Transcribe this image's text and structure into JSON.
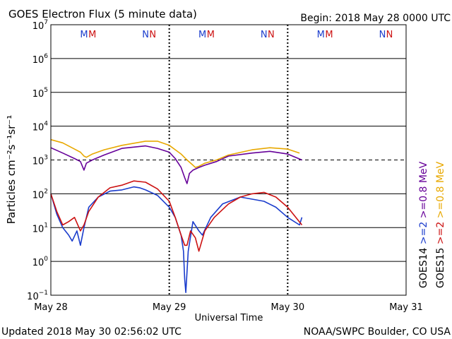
{
  "chart_data": {
    "type": "line",
    "title": "GOES Electron Flux (5 minute data)",
    "begin_label": "Begin: 2018 May 28 0000 UTC",
    "xlabel": "Universal Time",
    "ylabel": "Particles cm⁻²s⁻¹sr⁻¹",
    "x_ticks": [
      "May 28",
      "May 29",
      "May 30",
      "May 31"
    ],
    "x_range_days": [
      0,
      3
    ],
    "y_scale": "log",
    "ylim": [
      0.1,
      10000000
    ],
    "y_ticks": [
      {
        "base": "10",
        "exp": "7"
      },
      {
        "base": "10",
        "exp": "6"
      },
      {
        "base": "10",
        "exp": "5"
      },
      {
        "base": "10",
        "exp": "4"
      },
      {
        "base": "10",
        "exp": "3"
      },
      {
        "base": "10",
        "exp": "2"
      },
      {
        "base": "10",
        "exp": "1"
      },
      {
        "base": "10",
        "exp": "0"
      },
      {
        "base": "10",
        "exp": "−1"
      }
    ],
    "threshold_line_value": 1000,
    "mn_markers": [
      {
        "day": 0.28,
        "text": "M",
        "color": "#1a3ccc"
      },
      {
        "day": 0.35,
        "text": "M",
        "color": "#cc1111"
      },
      {
        "day": 0.8,
        "text": "N",
        "color": "#1a3ccc"
      },
      {
        "day": 0.86,
        "text": "N",
        "color": "#cc1111"
      },
      {
        "day": 1.28,
        "text": "M",
        "color": "#1a3ccc"
      },
      {
        "day": 1.35,
        "text": "M",
        "color": "#cc1111"
      },
      {
        "day": 1.8,
        "text": "N",
        "color": "#1a3ccc"
      },
      {
        "day": 1.86,
        "text": "N",
        "color": "#cc1111"
      },
      {
        "day": 2.28,
        "text": "M",
        "color": "#1a3ccc"
      },
      {
        "day": 2.35,
        "text": "M",
        "color": "#cc1111"
      },
      {
        "day": 2.8,
        "text": "N",
        "color": "#1a3ccc"
      },
      {
        "day": 2.86,
        "text": "N",
        "color": "#cc1111"
      }
    ],
    "right_legend": [
      {
        "label": "GOES14",
        "color": "#000000"
      },
      {
        "label": ">=2",
        "color": "#1a3ccc"
      },
      {
        "label": ">=0.8 MeV",
        "color": "#660099"
      },
      {
        "label": "GOES15",
        "color": "#000000"
      },
      {
        "label": ">=2",
        "color": "#cc1111"
      },
      {
        "label": ">=0.8 MeV",
        "color": "#e8a800"
      }
    ],
    "series": [
      {
        "color": "#e8a800",
        "x": [
          0,
          0.1,
          0.2,
          0.25,
          0.28,
          0.3,
          0.35,
          0.45,
          0.6,
          0.8,
          0.9,
          1.0,
          1.1,
          1.15,
          1.2,
          1.22,
          1.25,
          1.3,
          1.4,
          1.5,
          1.7,
          1.85,
          2.0,
          2.1
        ],
        "y": [
          4000,
          3200,
          2100,
          1700,
          1300,
          1200,
          1500,
          2000,
          2700,
          3600,
          3600,
          2700,
          1500,
          1000,
          700,
          600,
          650,
          800,
          1000,
          1400,
          2000,
          2300,
          2100,
          1600
        ]
      },
      {
        "color": "#660099",
        "x": [
          0,
          0.1,
          0.2,
          0.25,
          0.28,
          0.3,
          0.35,
          0.45,
          0.6,
          0.8,
          0.9,
          1.0,
          1.05,
          1.1,
          1.13,
          1.15,
          1.17,
          1.2,
          1.25,
          1.3,
          1.4,
          1.5,
          1.7,
          1.85,
          2.0,
          2.12
        ],
        "y": [
          2300,
          1600,
          1100,
          900,
          500,
          800,
          1000,
          1400,
          2200,
          2600,
          2200,
          1700,
          1100,
          600,
          300,
          200,
          400,
          500,
          600,
          700,
          900,
          1300,
          1600,
          1800,
          1500,
          1000
        ]
      },
      {
        "color": "#1a3ccc",
        "x": [
          0,
          0.05,
          0.1,
          0.15,
          0.18,
          0.22,
          0.25,
          0.28,
          0.32,
          0.4,
          0.5,
          0.6,
          0.7,
          0.75,
          0.8,
          0.9,
          1.0,
          1.05,
          1.1,
          1.12,
          1.13,
          1.14,
          1.16,
          1.2,
          1.25,
          1.28,
          1.35,
          1.45,
          1.6,
          1.8,
          1.9,
          2.0,
          2.1,
          2.12
        ],
        "y": [
          100,
          25,
          10,
          6,
          4,
          8,
          3,
          10,
          40,
          80,
          120,
          130,
          160,
          150,
          130,
          90,
          40,
          20,
          6,
          2,
          0.3,
          0.12,
          2,
          15,
          8,
          6,
          20,
          50,
          80,
          60,
          40,
          20,
          12,
          20
        ]
      },
      {
        "color": "#cc1111",
        "x": [
          0,
          0.05,
          0.1,
          0.15,
          0.2,
          0.25,
          0.28,
          0.32,
          0.4,
          0.5,
          0.6,
          0.7,
          0.8,
          0.9,
          1.0,
          1.05,
          1.1,
          1.13,
          1.15,
          1.18,
          1.22,
          1.25,
          1.3,
          1.38,
          1.5,
          1.6,
          1.7,
          1.8,
          1.9,
          2.0,
          2.12
        ],
        "y": [
          100,
          30,
          12,
          15,
          20,
          8,
          12,
          30,
          80,
          150,
          180,
          240,
          220,
          140,
          60,
          20,
          6,
          3,
          3,
          8,
          5,
          2,
          8,
          20,
          50,
          80,
          100,
          110,
          80,
          40,
          12
        ]
      }
    ]
  },
  "footer": {
    "updated": "Updated 2018 May 30 02:56:02 UTC",
    "credit": "NOAA/SWPC Boulder, CO USA"
  }
}
